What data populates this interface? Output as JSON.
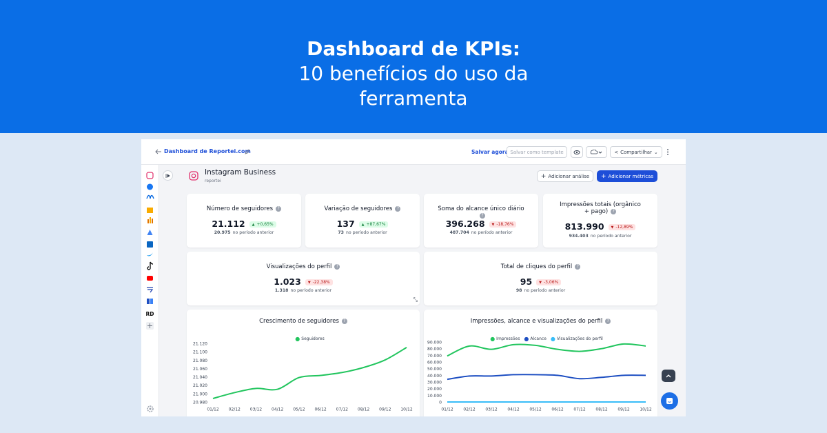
{
  "banner": {
    "title": "Dashboard de KPIs:",
    "subtitle_lines": [
      "10 benefícios do uso da",
      "ferramenta"
    ]
  },
  "toolbar": {
    "dashboard_name": "Dashboard de Reportei.com",
    "save": "Salvar agora",
    "template": "Salvar como template",
    "share": "Compartilhar"
  },
  "sidebar": {
    "rd_label": "RD"
  },
  "header": {
    "title": "Instagram Business",
    "account": "reportei",
    "add_analysis": "Adicionar análise",
    "add_metrics": "Adicionar métricas"
  },
  "kpis": [
    {
      "title": "Número de seguidores",
      "value": "21.112",
      "change": "+0,65%",
      "direction": "up",
      "previous": "20.975",
      "previous_label": "no período anterior"
    },
    {
      "title": "Variação de seguidores",
      "value": "137",
      "change": "+87,67%",
      "direction": "up",
      "previous": "73",
      "previous_label": "no período anterior"
    },
    {
      "title": "Soma do alcance único diário",
      "value": "396.268",
      "change": "-18,76%",
      "direction": "down",
      "previous": "487.704",
      "previous_label": "no período anterior"
    },
    {
      "title": "Impressões totais (orgânico + pago)",
      "value": "813.990",
      "change": "-12,89%",
      "direction": "down",
      "previous": "934.403",
      "previous_label": "no período anterior"
    },
    {
      "title": "Visualizações do perfil",
      "value": "1.023",
      "change": "-22,38%",
      "direction": "down",
      "previous": "1.318",
      "previous_label": "no período anterior"
    },
    {
      "title": "Total de cliques do perfil",
      "value": "95",
      "change": "-3,06%",
      "direction": "down",
      "previous": "98",
      "previous_label": "no período anterior"
    }
  ],
  "charts": [
    {
      "type": "line",
      "title": "Crescimento de seguidores",
      "categories": [
        "01/12",
        "02/12",
        "03/12",
        "04/12",
        "05/12",
        "06/12",
        "07/12",
        "08/12",
        "09/12",
        "10/12"
      ],
      "series": [
        {
          "name": "Seguidores",
          "color": "#22c55e",
          "values": [
            20990,
            21004,
            21014,
            21012,
            21040,
            21045,
            21052,
            21064,
            21082,
            21112
          ]
        }
      ],
      "ylim": [
        20980,
        21120
      ],
      "yticks": [
        {
          "value": 20980,
          "label": "20.980"
        },
        {
          "value": 21000,
          "label": "21.000"
        },
        {
          "value": 21020,
          "label": "21.020"
        },
        {
          "value": 21040,
          "label": "21.040"
        },
        {
          "value": 21060,
          "label": "21.060"
        },
        {
          "value": 21080,
          "label": "21.080"
        },
        {
          "value": 21100,
          "label": "21.100"
        },
        {
          "value": 21120,
          "label": "21.120"
        }
      ]
    },
    {
      "type": "line",
      "title": "Impressões, alcance e visualizações do perfil",
      "categories": [
        "01/12",
        "02/12",
        "03/12",
        "04/12",
        "05/12",
        "06/12",
        "07/12",
        "08/12",
        "09/12",
        "10/12"
      ],
      "series": [
        {
          "name": "Impressões",
          "color": "#22c55e",
          "values": [
            70000,
            85000,
            80000,
            87000,
            86000,
            80000,
            77000,
            81000,
            88000,
            85000
          ]
        },
        {
          "name": "Alcance",
          "color": "#1e4fc2",
          "values": [
            35000,
            40000,
            40000,
            42000,
            42000,
            41000,
            36000,
            38000,
            41000,
            41000
          ]
        },
        {
          "name": "Visualizações do perfil",
          "color": "#38bdf8",
          "values": [
            1000,
            1000,
            1000,
            1000,
            1000,
            1000,
            1000,
            1000,
            1000,
            1000
          ]
        }
      ],
      "ylim": [
        0,
        90000
      ],
      "yticks": [
        0,
        {
          "value": 10000,
          "label": "10.000"
        },
        {
          "value": 20000,
          "label": "20.000"
        },
        {
          "value": 30000,
          "label": "30.000"
        },
        {
          "value": 40000,
          "label": "40.000"
        },
        {
          "value": 50000,
          "label": "50.000"
        },
        {
          "value": 60000,
          "label": "60.000"
        },
        {
          "value": 70000,
          "label": "70.000"
        },
        {
          "value": 80000,
          "label": "80.000"
        },
        {
          "value": 90000,
          "label": "90.000"
        }
      ]
    }
  ]
}
